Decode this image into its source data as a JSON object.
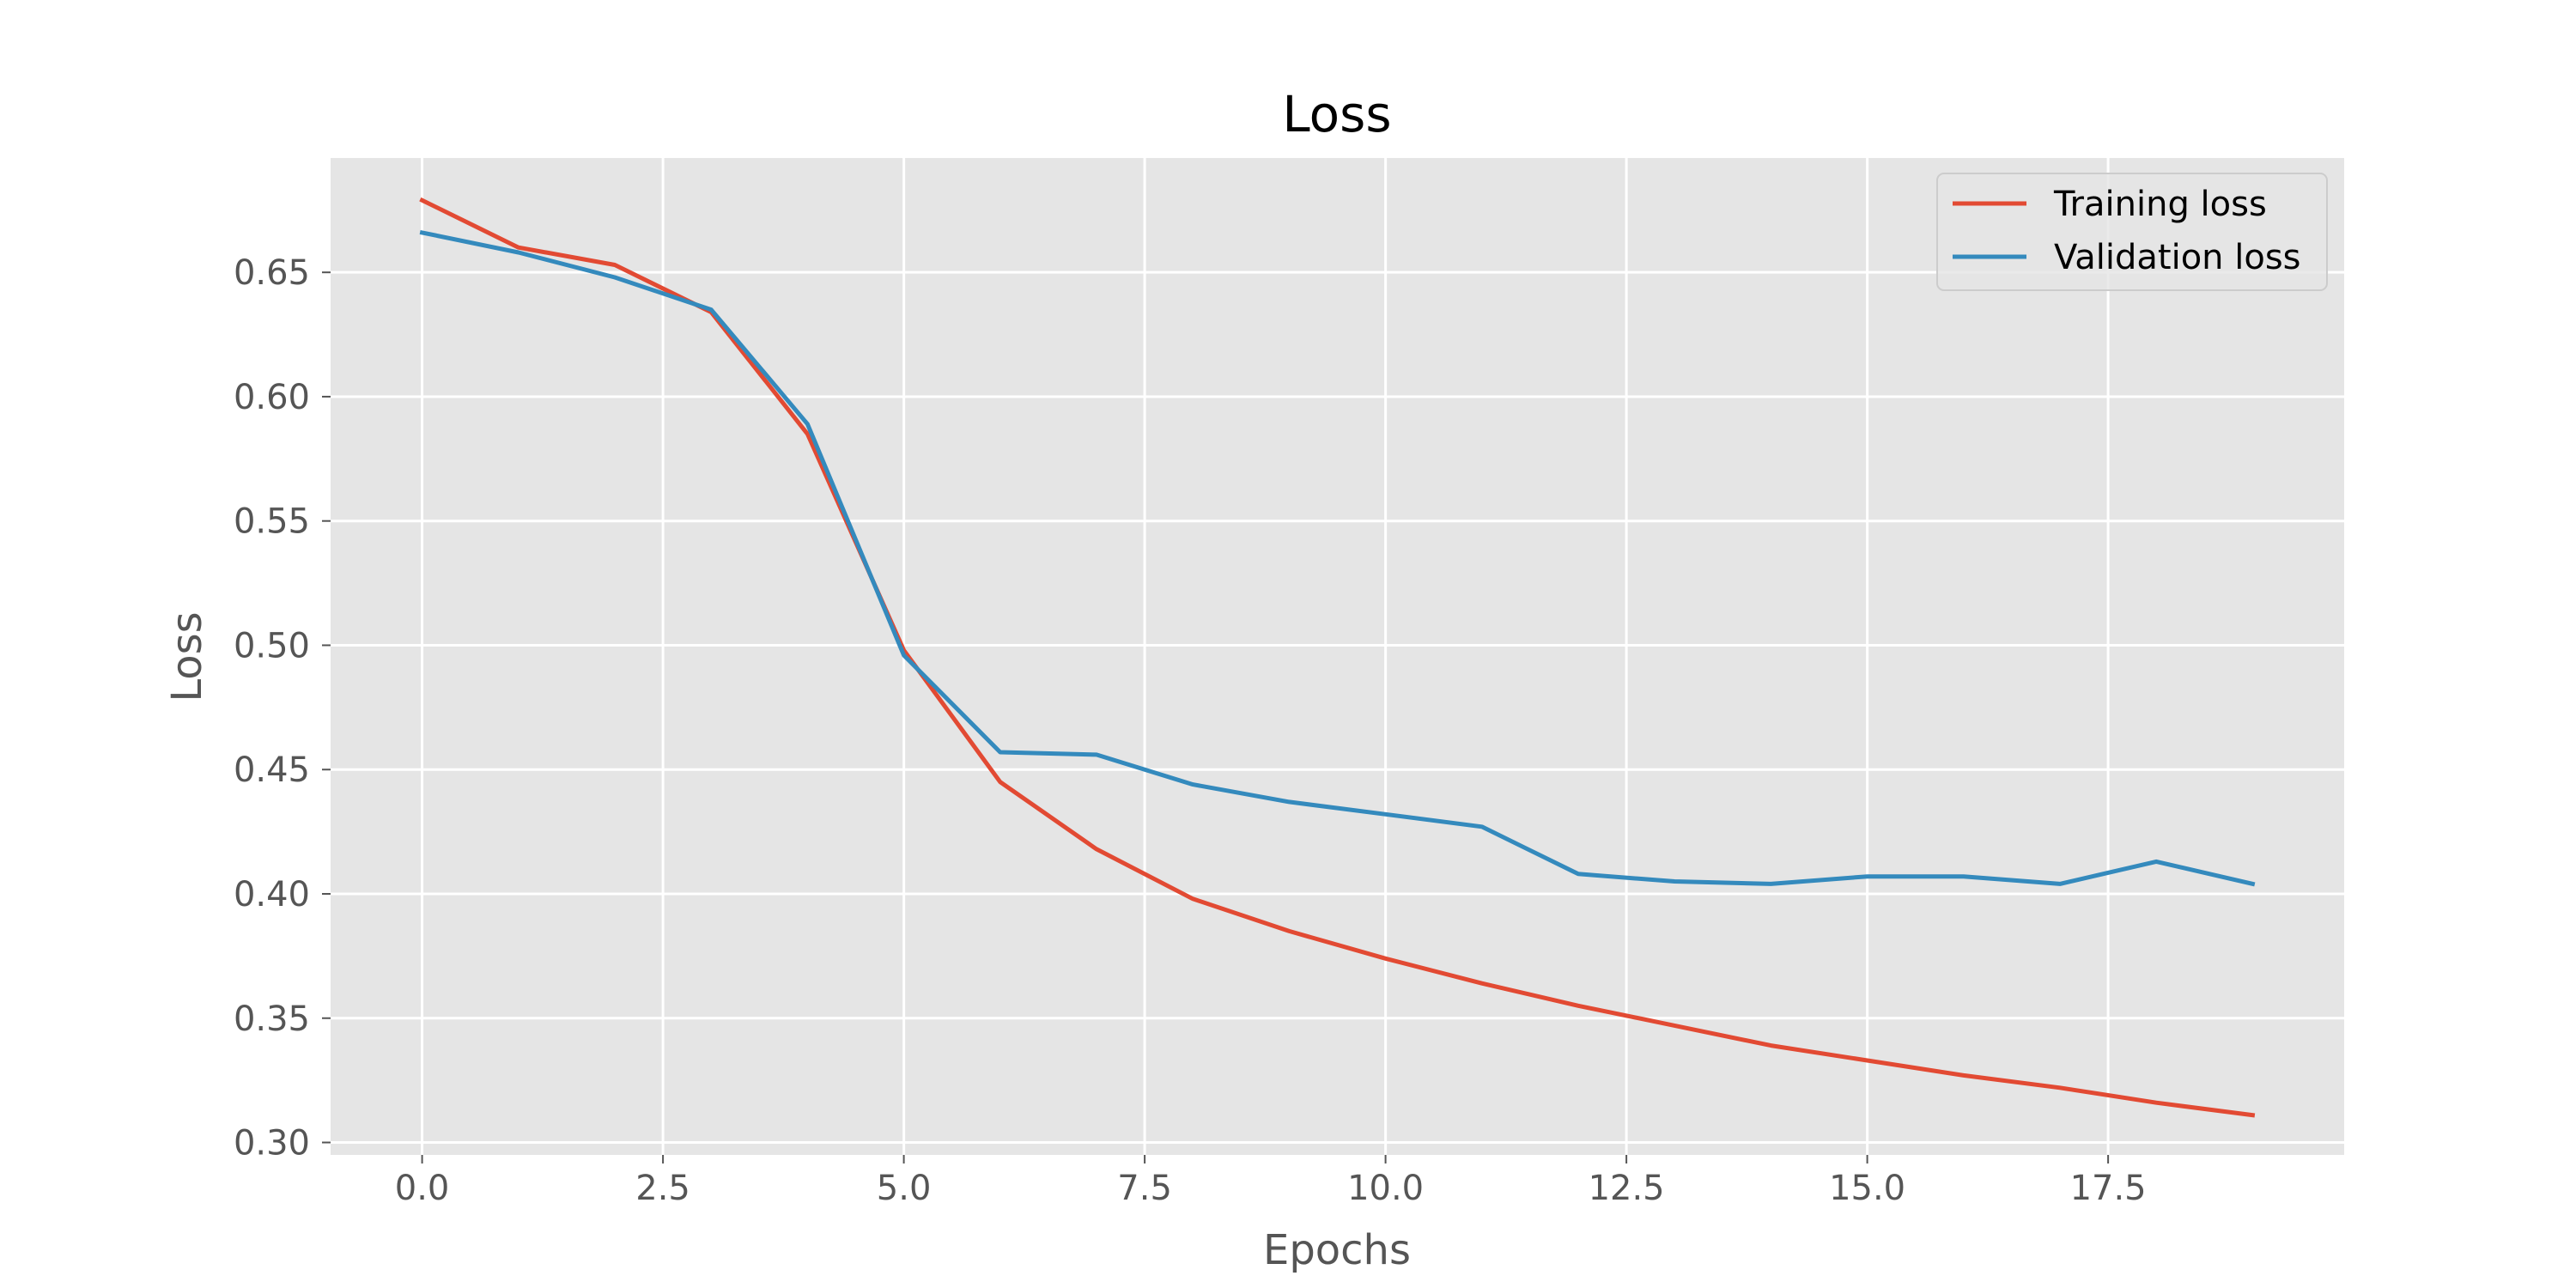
{
  "chart_data": {
    "type": "line",
    "title": "Loss",
    "xlabel": "Epochs",
    "ylabel": "Loss",
    "xlim": [
      -0.95,
      19.95
    ],
    "ylim": [
      0.295,
      0.696
    ],
    "x_ticks": [
      0.0,
      2.5,
      5.0,
      7.5,
      10.0,
      12.5,
      15.0,
      17.5
    ],
    "x_tick_labels": [
      "0.0",
      "2.5",
      "5.0",
      "7.5",
      "10.0",
      "12.5",
      "15.0",
      "17.5"
    ],
    "y_ticks": [
      0.3,
      0.35,
      0.4,
      0.45,
      0.5,
      0.55,
      0.6,
      0.65
    ],
    "y_tick_labels": [
      "0.30",
      "0.35",
      "0.40",
      "0.45",
      "0.50",
      "0.55",
      "0.60",
      "0.65"
    ],
    "grid": true,
    "legend_position": "top-right",
    "x": [
      0,
      1,
      2,
      3,
      4,
      5,
      6,
      7,
      8,
      9,
      10,
      11,
      12,
      13,
      14,
      15,
      16,
      17,
      18,
      19
    ],
    "series": [
      {
        "name": "Training loss",
        "color": "#E24A33",
        "values": [
          0.679,
          0.66,
          0.653,
          0.634,
          0.585,
          0.498,
          0.445,
          0.418,
          0.398,
          0.385,
          0.374,
          0.364,
          0.355,
          0.347,
          0.339,
          0.333,
          0.327,
          0.322,
          0.316,
          0.311
        ]
      },
      {
        "name": "Validation loss",
        "color": "#348ABD",
        "values": [
          0.666,
          0.658,
          0.648,
          0.635,
          0.589,
          0.496,
          0.457,
          0.456,
          0.444,
          0.437,
          0.432,
          0.427,
          0.408,
          0.405,
          0.404,
          0.407,
          0.407,
          0.404,
          0.413,
          0.404
        ]
      }
    ]
  }
}
